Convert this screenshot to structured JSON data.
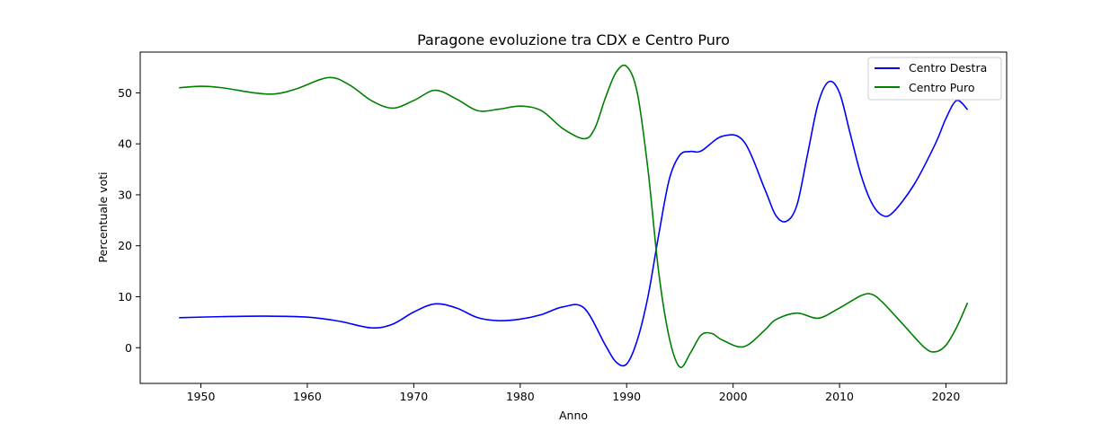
{
  "chart_data": {
    "type": "line",
    "title": "Paragone evoluzione tra CDX e Centro Puro",
    "xlabel": "Anno",
    "ylabel": "Percentuale voti",
    "xlim": [
      1944.3,
      2025.7
    ],
    "ylim": [
      -7.0,
      58.0
    ],
    "xticks": [
      1950,
      1960,
      1970,
      1980,
      1990,
      2000,
      2010,
      2020
    ],
    "yticks": [
      0,
      10,
      20,
      30,
      40,
      50
    ],
    "grid": false,
    "legend_position": "top-right",
    "series": [
      {
        "name": "Centro Destra",
        "color": "#0000ff",
        "x": [
          1948,
          1952,
          1956,
          1960,
          1963,
          1966,
          1968,
          1970,
          1972,
          1974,
          1976,
          1978,
          1980,
          1982,
          1984,
          1986,
          1988,
          1989,
          1990,
          1991,
          1992,
          1993,
          1994,
          1995,
          1996,
          1997,
          1999,
          2001,
          2003,
          2004,
          2005,
          2006,
          2007,
          2008,
          2009,
          2010,
          2011,
          2012,
          2013,
          2014,
          2015,
          2017,
          2019,
          2020,
          2021,
          2022
        ],
        "y": [
          5.9,
          6.1,
          6.2,
          6.0,
          5.2,
          3.9,
          4.6,
          7.0,
          8.6,
          7.8,
          5.9,
          5.3,
          5.6,
          6.5,
          8.0,
          7.8,
          0.5,
          -2.8,
          -3.2,
          1.5,
          10.0,
          22.0,
          33.0,
          37.8,
          38.5,
          38.6,
          41.5,
          40.5,
          31.0,
          26.0,
          24.8,
          28.0,
          38.0,
          48.0,
          52.2,
          50.0,
          42.0,
          34.0,
          28.5,
          26.0,
          26.5,
          32.0,
          40.0,
          45.0,
          48.5,
          46.8
        ]
      },
      {
        "name": "Centro Puro",
        "color": "#008000",
        "x": [
          1948,
          1950,
          1952,
          1955,
          1957,
          1959,
          1962,
          1964,
          1966,
          1968,
          1970,
          1972,
          1974,
          1976,
          1978,
          1980,
          1982,
          1984,
          1986,
          1987,
          1988,
          1989,
          1990,
          1991,
          1992,
          1993,
          1994,
          1995,
          1996,
          1997,
          1998,
          1999,
          2001,
          2003,
          2004,
          2006,
          2008,
          2010,
          2012,
          2013,
          2014,
          2016,
          2018,
          2019,
          2020,
          2021,
          2022
        ],
        "y": [
          51.0,
          51.3,
          51.0,
          50.0,
          49.8,
          50.8,
          53.0,
          51.5,
          48.5,
          47.0,
          48.5,
          50.5,
          48.8,
          46.5,
          46.8,
          47.4,
          46.5,
          43.0,
          41.0,
          43.0,
          49.0,
          54.0,
          55.2,
          50.0,
          35.0,
          15.0,
          2.0,
          -3.8,
          -1.0,
          2.5,
          2.8,
          1.5,
          0.2,
          3.5,
          5.5,
          6.8,
          5.8,
          7.8,
          10.2,
          10.5,
          9.0,
          4.5,
          0.0,
          -0.8,
          0.5,
          4.0,
          8.7
        ]
      }
    ]
  }
}
